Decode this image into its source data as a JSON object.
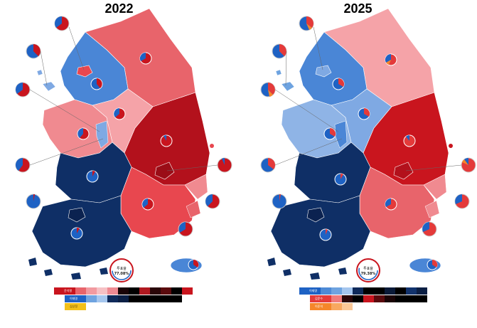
{
  "maps": [
    {
      "year": "2022",
      "turnout_label": "투표율",
      "turnout_value": "77.08%",
      "legend": [
        {
          "name": "윤석열",
          "color": "#c9151e",
          "shades": [
            "#c9151e",
            "#e8646b",
            "#f29aa0",
            "#f6c0c4",
            "#ee8a92",
            "#b01920",
            "#5a0a0d",
            "#1a0406",
            "#000000",
            "#8e1b22",
            "#2a0608",
            "#000000"
          ]
        },
        {
          "name": "이재명",
          "color": "#1e62c4",
          "shades": [
            "#1e62c4",
            "#6ea3e0",
            "#a5c6ee",
            "#0f2a5a",
            "#0b1f44",
            "#000000"
          ]
        },
        {
          "name": "심상정",
          "color": "#f2c01a",
          "shades": [
            "#f2c01a"
          ]
        }
      ]
    },
    {
      "year": "2025",
      "turnout_label": "투표율",
      "turnout_value": "79.38%",
      "legend": [
        {
          "name": "이재명",
          "color": "#1e62c4",
          "shades": [
            "#1e62c4",
            "#4d8ad6",
            "#6ea3e0",
            "#a5c6ee",
            "#0f2a5a",
            "#0b1f44",
            "#000000",
            "#000000",
            "#0a1a38",
            "#000000",
            "#12336d",
            "#0b1f44"
          ]
        },
        {
          "name": "김문수",
          "color": "#e43a3a",
          "shades": [
            "#e43a3a",
            "#f07a7a",
            "#f5a3a3",
            "#2a0608",
            "#000000",
            "#c9151e",
            "#5a0a0d",
            "#1a0406",
            "#000000"
          ]
        },
        {
          "name": "이준석",
          "color": "#f5862a",
          "shades": [
            "#f5862a",
            "#f8a860",
            "#fbc897"
          ]
        }
      ]
    }
  ],
  "colors": {
    "dark_red": "#b3111c",
    "red": "#e8474f",
    "light_red": "#f08a90",
    "pink": "#f5a3a8",
    "blue": "#4a86d6",
    "light_blue": "#7fa9e3",
    "navy": "#0f2f66"
  }
}
